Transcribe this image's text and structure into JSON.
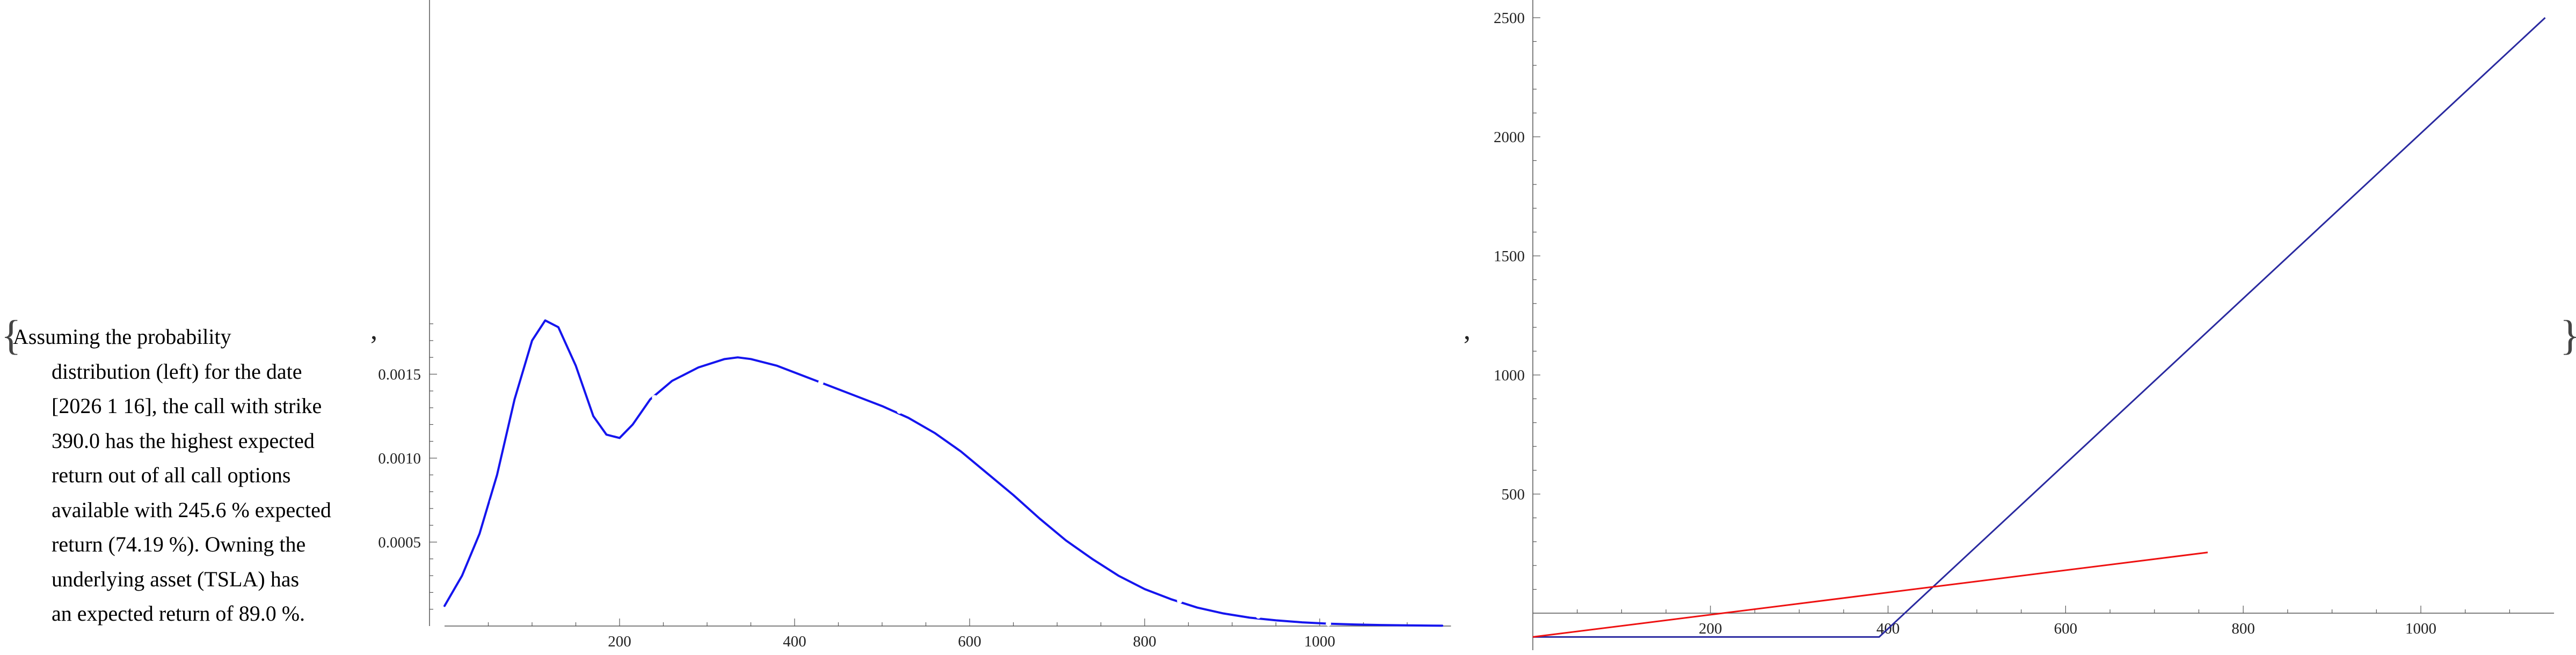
{
  "message": {
    "lines": [
      "Assuming the probability",
      "distribution (left) for the date",
      "[2026 1 16], the call with strike",
      "390.0 has the highest expected",
      "return out of all call options",
      "available with 245.6 % expected",
      "return (74.19 %). Owning the",
      "underlying asset (TSLA) has",
      "an expected return of 89.0 %."
    ]
  },
  "punctuation": {
    "open_brace": "{",
    "close_brace": "}",
    "comma": ","
  },
  "chart_data": [
    {
      "type": "line",
      "title": "",
      "xlabel": "",
      "ylabel": "",
      "xlim": [
        0,
        1150
      ],
      "ylim": [
        0,
        0.00185
      ],
      "x_ticks": [
        200,
        400,
        600,
        800,
        1000
      ],
      "y_ticks": [
        0.0005,
        0.001,
        0.0015
      ],
      "y_tick_labels": [
        "0.0005",
        "0.0010",
        "0.0015"
      ],
      "grid": false,
      "colors": {
        "line": "#1515ee"
      },
      "series": [
        {
          "x": [
            0,
            20,
            40,
            60,
            80,
            100,
            115,
            130,
            150,
            170,
            185,
            200,
            215,
            235,
            260,
            290,
            320,
            335,
            350,
            380,
            410,
            440,
            470,
            500,
            530,
            560,
            590,
            620,
            650,
            680,
            710,
            740,
            770,
            800,
            830,
            860,
            890,
            920,
            950,
            980,
            1010,
            1040,
            1070,
            1100,
            1140
          ],
          "y": [
            0.00012,
            0.0003,
            0.00055,
            0.0009,
            0.00135,
            0.0017,
            0.00182,
            0.00178,
            0.00155,
            0.00125,
            0.00114,
            0.00112,
            0.0012,
            0.00135,
            0.00146,
            0.00154,
            0.00159,
            0.0016,
            0.00159,
            0.00155,
            0.00149,
            0.00143,
            0.00137,
            0.00131,
            0.00124,
            0.00115,
            0.00104,
            0.00091,
            0.00078,
            0.00064,
            0.00051,
            0.0004,
            0.0003,
            0.00022,
            0.00016,
            0.00011,
            7.5e-05,
            5e-05,
            3.4e-05,
            2.2e-05,
            1.4e-05,
            9e-06,
            6e-06,
            4e-06,
            2e-06
          ]
        }
      ]
    },
    {
      "type": "line",
      "title": "",
      "xlabel": "",
      "ylabel": "",
      "xlim": [
        0,
        1150
      ],
      "ylim": [
        -100,
        2500
      ],
      "x_ticks": [
        200,
        400,
        600,
        800,
        1000
      ],
      "y_ticks": [
        500,
        1000,
        1500,
        2000,
        2500
      ],
      "grid": false,
      "series": [
        {
          "x": [
            0,
            390,
            1140
          ],
          "y": [
            -100,
            -100,
            2500
          ],
          "color": "#2a2aa0"
        },
        {
          "x": [
            0,
            760
          ],
          "y": [
            -100,
            255
          ],
          "color": "#ee1111"
        }
      ]
    }
  ]
}
